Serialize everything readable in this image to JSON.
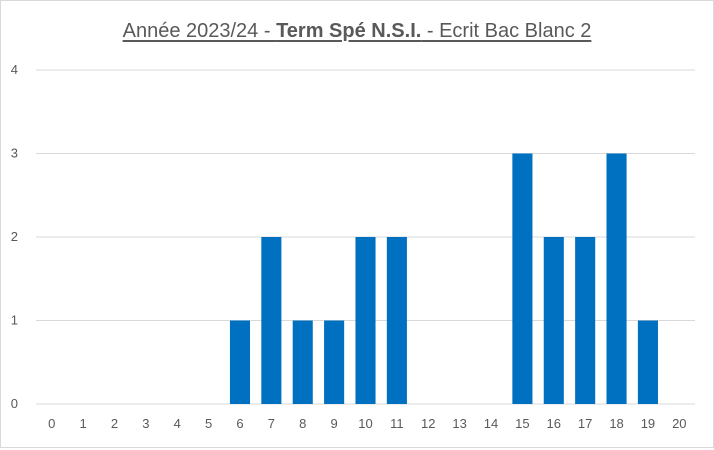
{
  "chart_data": {
    "type": "bar",
    "title": {
      "part1": "Année 2023/24 - ",
      "part2": "Term Spé N.S.I.",
      "part3": " - Ecrit Bac Blanc 2"
    },
    "categories": [
      "0",
      "1",
      "2",
      "3",
      "4",
      "5",
      "6",
      "7",
      "8",
      "9",
      "10",
      "11",
      "12",
      "13",
      "14",
      "15",
      "16",
      "17",
      "18",
      "19",
      "20"
    ],
    "values": [
      0,
      0,
      0,
      0,
      0,
      0,
      1,
      2,
      1,
      1,
      2,
      2,
      0,
      0,
      0,
      3,
      2,
      2,
      3,
      1,
      0
    ],
    "ylim": [
      0,
      4
    ],
    "yticks": [
      "0",
      "1",
      "2",
      "3",
      "4"
    ],
    "xlabel": "",
    "ylabel": "",
    "grid": true,
    "legend": "none",
    "bar_color": "#0070c0",
    "grid_color": "#d9d9d9"
  }
}
